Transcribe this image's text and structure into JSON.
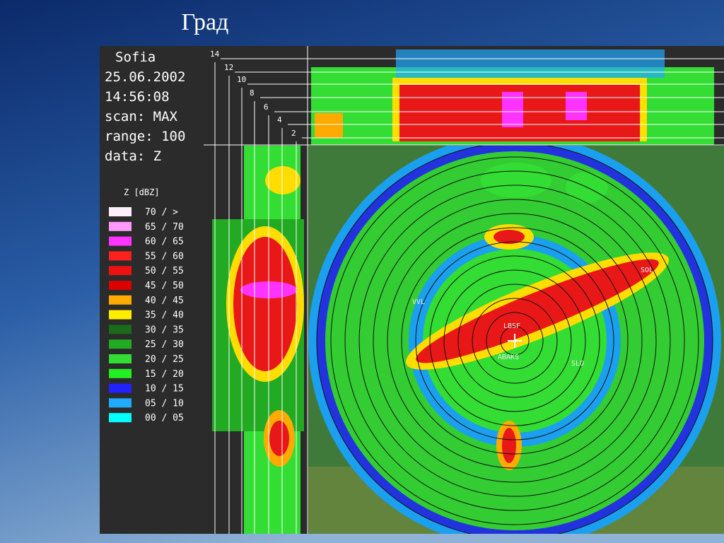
{
  "title": "Град",
  "info": [
    "Sofia",
    "25.06.2002",
    "14:56:08",
    "scan: MAX",
    "range: 100",
    "data: Z"
  ],
  "legend": {
    "title": "Z [dBZ]",
    "items": [
      {
        "label": "70 / >",
        "color": "#fff0ff"
      },
      {
        "label": "65 / 70",
        "color": "#ff99ff"
      },
      {
        "label": "60 / 65",
        "color": "#ff33ff"
      },
      {
        "label": "55 / 60",
        "color": "#ff2020"
      },
      {
        "label": "50 / 55",
        "color": "#ee1111"
      },
      {
        "label": "45 / 50",
        "color": "#dd0000"
      },
      {
        "label": "40 / 45",
        "color": "#ffaa00"
      },
      {
        "label": "35 / 40",
        "color": "#ffee00"
      },
      {
        "label": "30 / 35",
        "color": "#1a6b1a"
      },
      {
        "label": "25 / 30",
        "color": "#22aa22"
      },
      {
        "label": "20 / 25",
        "color": "#33dd33"
      },
      {
        "label": "15 / 20",
        "color": "#22ee22"
      },
      {
        "label": "10 / 15",
        "color": "#2222ff"
      },
      {
        "label": "05 / 10",
        "color": "#22aaff"
      },
      {
        "label": "00 / 05",
        "color": "#00ffff"
      }
    ]
  },
  "heights": [
    "14",
    "12",
    "10",
    "8",
    "6",
    "4",
    "2"
  ],
  "sites": [
    "LBSF",
    "ABAKS",
    "SLO",
    "SOL",
    "VVL"
  ]
}
